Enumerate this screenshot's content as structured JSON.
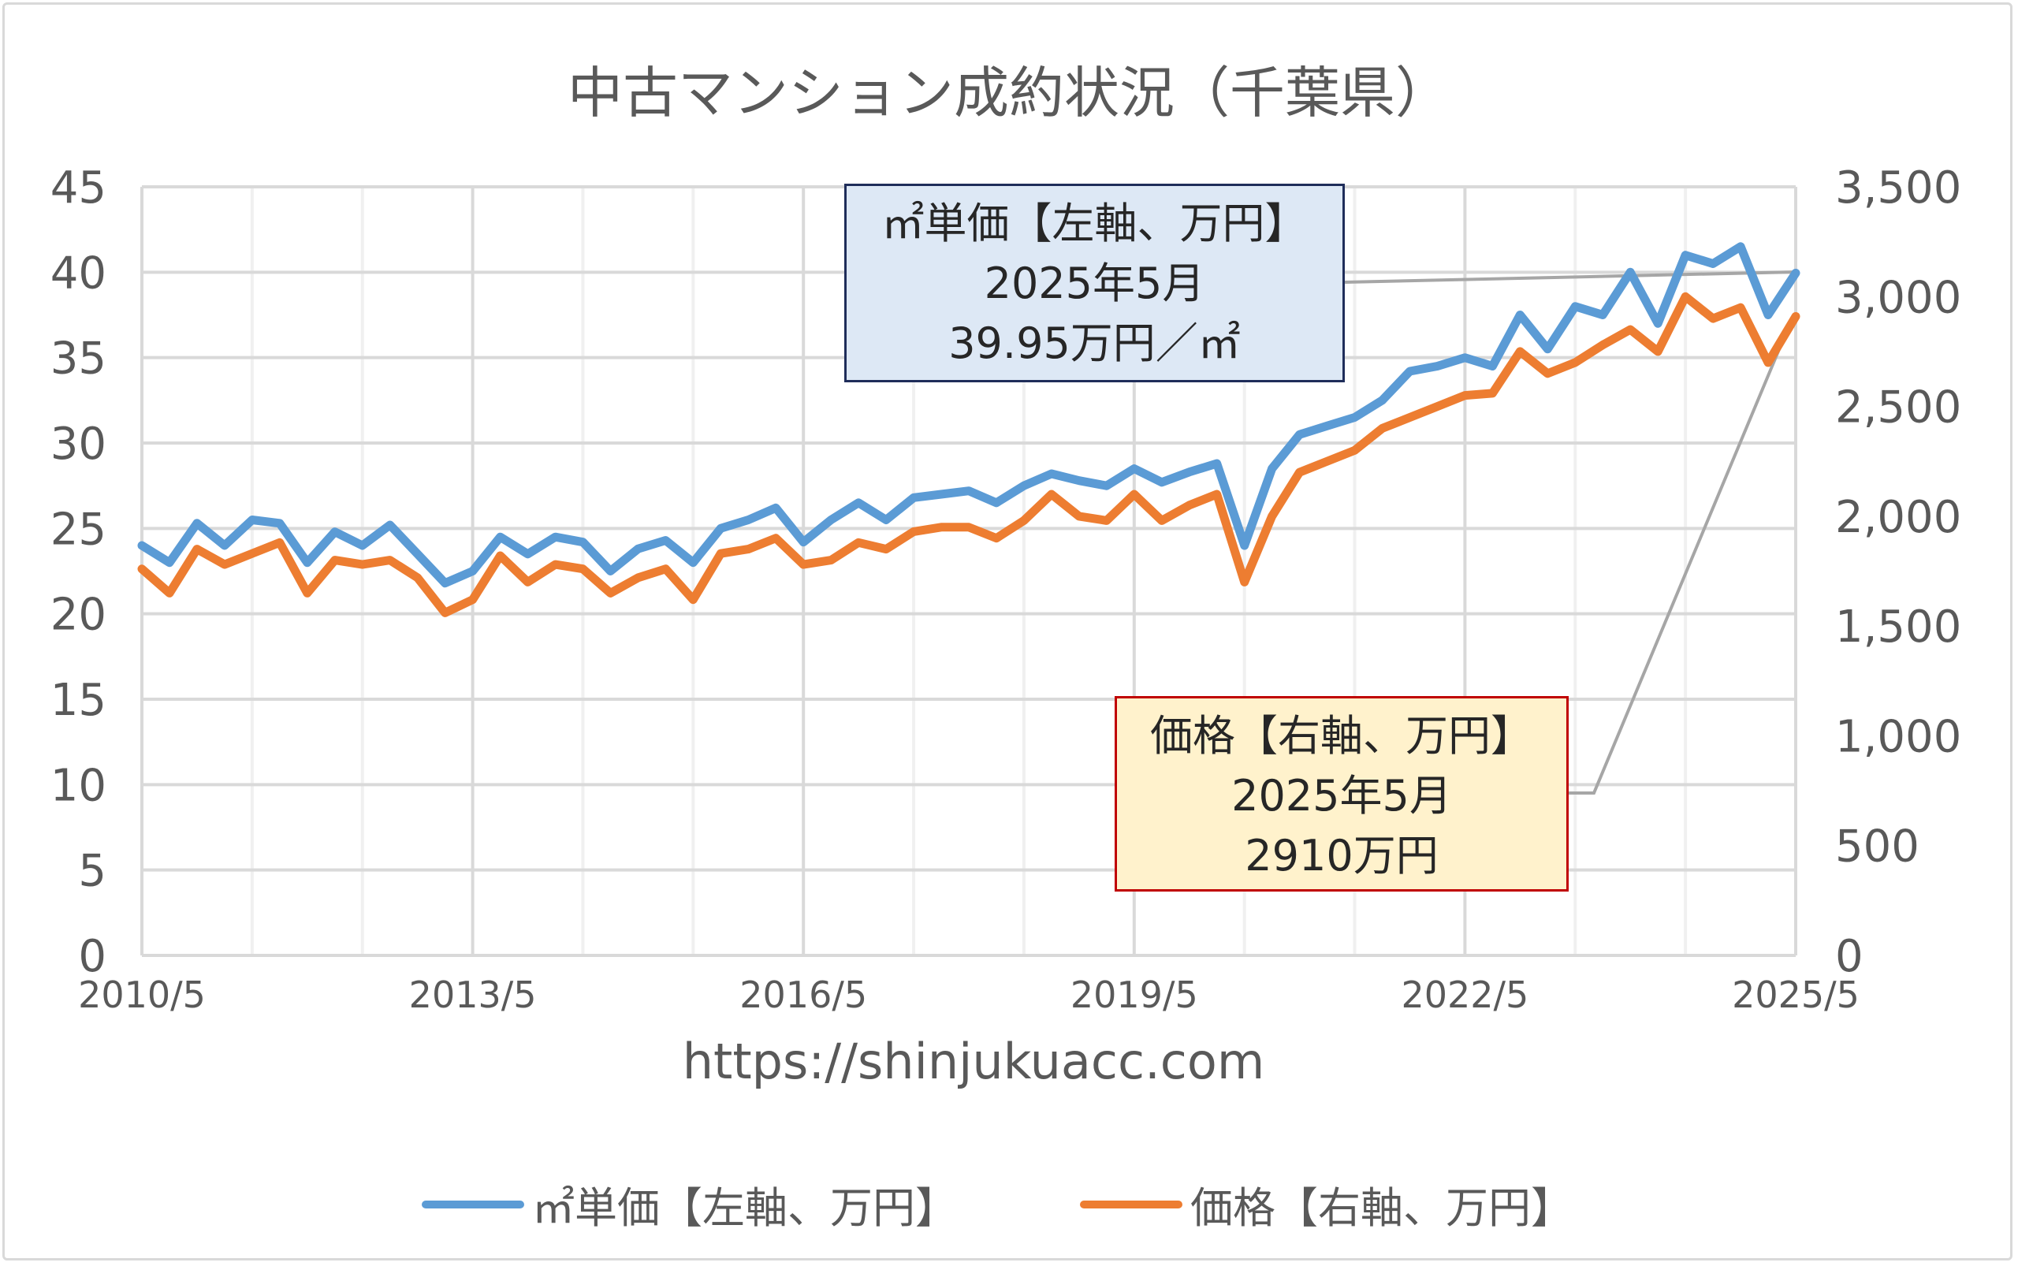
{
  "title": "中古マンション成約状況（千葉県）",
  "url": "https://shinjukuacc.com",
  "callouts": {
    "unit_price": {
      "line1": "㎡単価【左軸、万円】",
      "line2": "2025年5月",
      "line3": "39.95万円／㎡"
    },
    "price": {
      "line1": "価格【右軸、万円】",
      "line2": "2025年5月",
      "line3": "2910万円"
    }
  },
  "legend": [
    {
      "label": "㎡単価【左軸、万円】",
      "color": "#5b9bd5"
    },
    {
      "label": "価格【右軸、万円】",
      "color": "#ed7d31"
    }
  ],
  "chart_data": {
    "type": "line",
    "title": "中古マンション成約状況（千葉県）",
    "x_tick_labels": [
      "2010/5",
      "2013/5",
      "2016/5",
      "2019/5",
      "2022/5",
      "2025/5"
    ],
    "x_range": [
      "2010/5",
      "2025/5"
    ],
    "x_step_note": "quarterly samples (approximate readings of monthly data)",
    "y_left": {
      "ticks": [
        "0",
        "5",
        "10",
        "15",
        "20",
        "25",
        "30",
        "35",
        "40",
        "45"
      ],
      "range": [
        0,
        45
      ]
    },
    "y_right": {
      "ticks": [
        "0",
        "500",
        "1,000",
        "1,500",
        "2,000",
        "2,500",
        "3,000",
        "3,500"
      ],
      "range": [
        0,
        3500
      ]
    },
    "grid": true,
    "legend_position": "bottom",
    "series": [
      {
        "name": "㎡単価【左軸、万円】",
        "axis": "left",
        "color": "#5b9bd5",
        "values": [
          24.0,
          23.0,
          25.3,
          24.0,
          25.5,
          25.3,
          23.0,
          24.8,
          24.0,
          25.2,
          23.5,
          21.8,
          22.5,
          24.5,
          23.5,
          24.5,
          24.2,
          22.5,
          23.8,
          24.3,
          23.0,
          25.0,
          25.5,
          26.2,
          24.2,
          25.5,
          26.5,
          25.5,
          26.8,
          27.0,
          27.2,
          26.5,
          27.5,
          28.2,
          27.8,
          27.5,
          28.5,
          27.7,
          28.3,
          28.8,
          24.0,
          28.5,
          30.5,
          31.0,
          31.5,
          32.5,
          34.2,
          34.5,
          35.0,
          34.5,
          37.5,
          35.5,
          38.0,
          37.5,
          40.0,
          37.0,
          41.0,
          40.5,
          41.5,
          37.5,
          39.95
        ]
      },
      {
        "name": "価格【右軸、万円】",
        "axis": "right",
        "color": "#ed7d31",
        "values": [
          1760,
          1650,
          1850,
          1780,
          1830,
          1880,
          1650,
          1800,
          1780,
          1800,
          1720,
          1560,
          1620,
          1820,
          1700,
          1780,
          1760,
          1650,
          1720,
          1760,
          1620,
          1830,
          1850,
          1900,
          1780,
          1800,
          1880,
          1850,
          1930,
          1950,
          1950,
          1900,
          1980,
          2100,
          2000,
          1980,
          2100,
          1980,
          2050,
          2100,
          1700,
          2000,
          2200,
          2250,
          2300,
          2400,
          2450,
          2500,
          2550,
          2560,
          2750,
          2650,
          2700,
          2780,
          2850,
          2750,
          3000,
          2900,
          2950,
          2700,
          2910
        ]
      }
    ]
  }
}
